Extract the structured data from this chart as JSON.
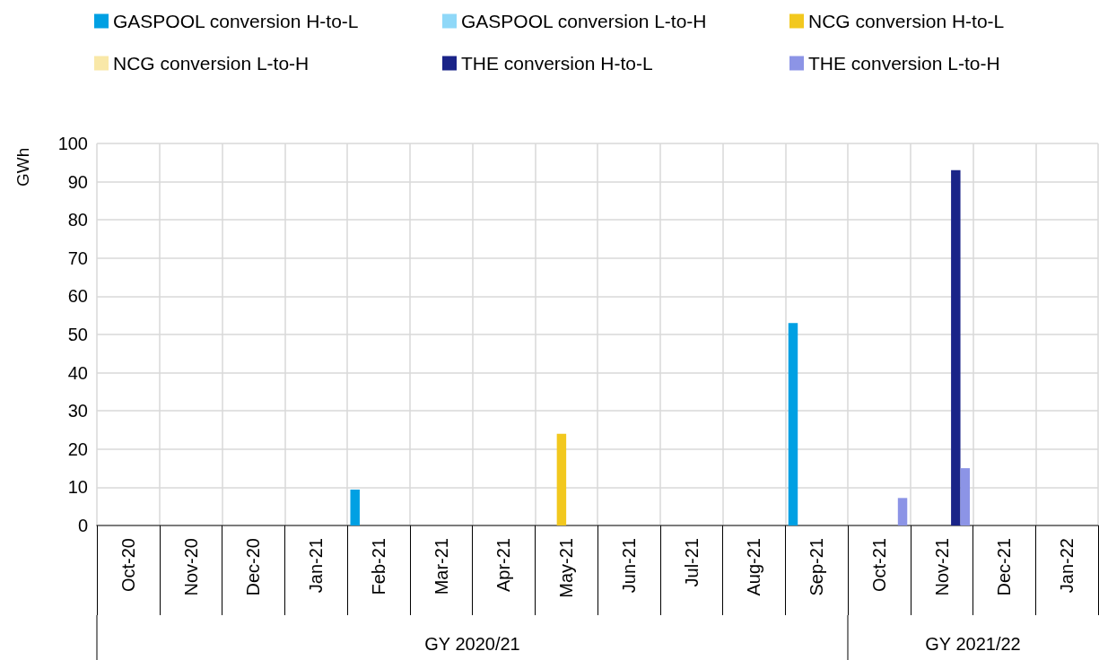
{
  "chart_data": {
    "type": "bar",
    "ylabel": "GWh",
    "categories": [
      "Oct-20",
      "Nov-20",
      "Dec-20",
      "Jan-21",
      "Feb-21",
      "Mar-21",
      "Apr-21",
      "May-21",
      "Jun-21",
      "Jul-21",
      "Aug-21",
      "Sep-21",
      "Oct-21",
      "Nov-21",
      "Dec-21",
      "Jan-22"
    ],
    "series": [
      {
        "name": "GASPOOL conversion H-to-L",
        "color": "#00a0e3",
        "values": [
          null,
          null,
          null,
          null,
          9.4,
          null,
          null,
          null,
          null,
          null,
          null,
          53,
          null,
          null,
          null,
          null
        ]
      },
      {
        "name": "GASPOOL conversion L-to-H",
        "color": "#8fd8f8",
        "values": [
          null,
          null,
          null,
          null,
          null,
          null,
          null,
          null,
          null,
          null,
          null,
          null,
          null,
          null,
          null,
          null
        ]
      },
      {
        "name": "NCG conversion H-to-L",
        "color": "#f2c81e",
        "values": [
          null,
          null,
          null,
          null,
          null,
          null,
          null,
          24,
          null,
          null,
          null,
          null,
          null,
          null,
          null,
          null
        ]
      },
      {
        "name": "NCG conversion L-to-H",
        "color": "#f9e8a8",
        "values": [
          null,
          null,
          null,
          null,
          null,
          null,
          null,
          null,
          null,
          null,
          null,
          null,
          null,
          null,
          null,
          null
        ]
      },
      {
        "name": "THE conversion H-to-L",
        "color": "#1a2488",
        "values": [
          null,
          null,
          null,
          null,
          null,
          null,
          null,
          null,
          null,
          null,
          null,
          null,
          null,
          93,
          null,
          null
        ]
      },
      {
        "name": "THE conversion L-to-H",
        "color": "#8c94e6",
        "values": [
          null,
          null,
          null,
          null,
          null,
          null,
          null,
          null,
          null,
          null,
          null,
          null,
          7.2,
          15,
          null,
          null
        ]
      }
    ],
    "ylim": [
      0,
      100
    ],
    "yticks": [
      0,
      10,
      20,
      30,
      40,
      50,
      60,
      70,
      80,
      90,
      100
    ],
    "grid": true,
    "legend": "top",
    "annotations": [
      "GY 2020/21",
      "GY 2021/22"
    ]
  }
}
